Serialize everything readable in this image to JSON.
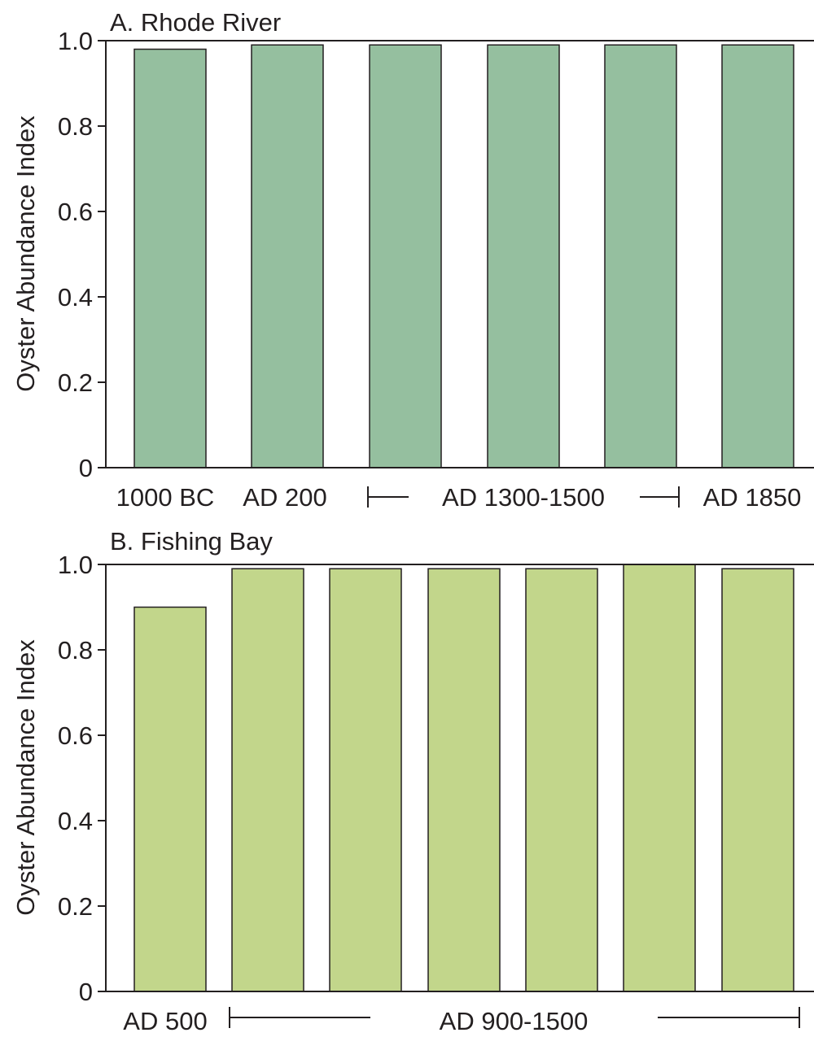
{
  "chart_data": [
    {
      "type": "bar",
      "title": "A. Rhode River",
      "ylabel": "Oyster Abundance Index",
      "ylim": [
        0,
        1.0
      ],
      "yticks": [
        "0",
        "0.2",
        "0.4",
        "0.6",
        "0.8",
        "1.0"
      ],
      "values": [
        0.98,
        0.99,
        0.99,
        0.99,
        0.99,
        0.99
      ],
      "bar_color": "#95bf9f",
      "category_labels": [
        {
          "text": "1000 BC",
          "bracket": "none"
        },
        {
          "text": "AD 200",
          "bracket": "none"
        },
        {
          "text": "AD 1300-1500",
          "bracket": "span"
        },
        {
          "text": "AD 1850",
          "bracket": "none"
        }
      ],
      "grid": false
    },
    {
      "type": "bar",
      "title": "B. Fishing Bay",
      "ylabel": "Oyster Abundance Index",
      "ylim": [
        0,
        1.0
      ],
      "yticks": [
        "0",
        "0.2",
        "0.4",
        "0.6",
        "0.8",
        "1.0"
      ],
      "values": [
        0.9,
        0.99,
        0.99,
        0.99,
        0.99,
        1.0,
        0.99
      ],
      "bar_color": "#c2d68b",
      "category_labels": [
        {
          "text": "AD 500",
          "bracket": "none"
        },
        {
          "text": "AD 900-1500",
          "bracket": "span"
        }
      ],
      "grid": false
    }
  ]
}
